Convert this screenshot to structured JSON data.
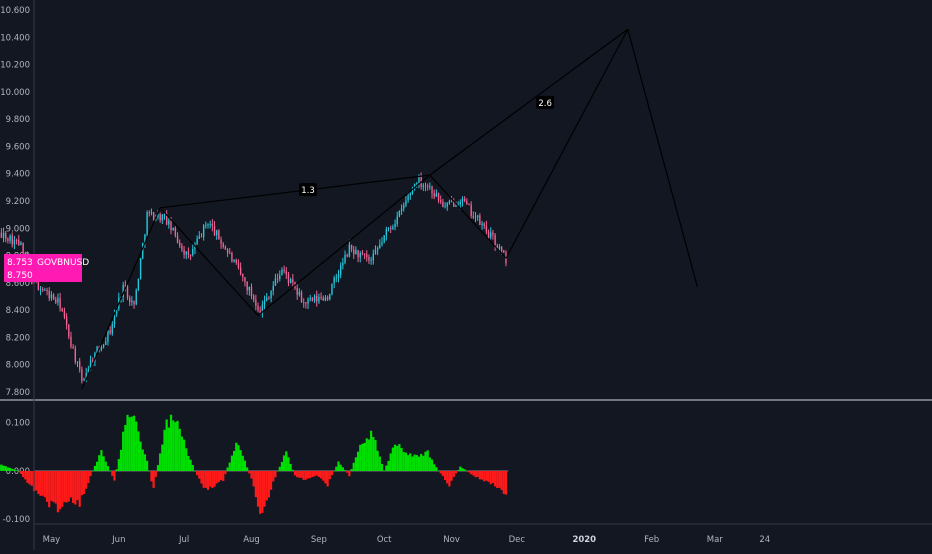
{
  "colors": {
    "background": "#131722",
    "axis_text": "#b2b5be",
    "candle_up": "#26c6da",
    "candle_down": "#f06292",
    "pattern_line": "#000000",
    "osc_positive": "#00e000",
    "osc_negative": "#ff1a1a",
    "badge": "#ff1ab3",
    "separator": "#d1d4dc"
  },
  "symbol": {
    "name": "GOVBNUSD",
    "price_top": "8.753",
    "price_bottom": "8.750"
  },
  "chart_data": [
    {
      "type": "candlestick",
      "title": "",
      "ylim": [
        7.74,
        10.66
      ],
      "y_ticks": [
        "7.800",
        "8.000",
        "8.200",
        "8.400",
        "8.600",
        "8.800",
        "9.000",
        "9.200",
        "9.400",
        "9.600",
        "9.800",
        "10.000",
        "10.200",
        "10.400",
        "10.600"
      ],
      "x_ticks": [
        "May",
        "Jun",
        "Jul",
        "Aug",
        "Sep",
        "Oct",
        "Nov",
        "Dec",
        "2020",
        "Feb",
        "Mar",
        "24"
      ],
      "price_path": [
        [
          "2019-04-01",
          8.93
        ],
        [
          "2019-04-10",
          8.95
        ],
        [
          "2019-04-17",
          8.87
        ],
        [
          "2019-04-22",
          8.62
        ],
        [
          "2019-05-05",
          8.44
        ],
        [
          "2019-05-15",
          7.88
        ],
        [
          "2019-05-20",
          8.05
        ],
        [
          "2019-05-28",
          8.25
        ],
        [
          "2019-06-03",
          8.58
        ],
        [
          "2019-06-08",
          8.43
        ],
        [
          "2019-06-14",
          9.1
        ],
        [
          "2019-06-22",
          9.08
        ],
        [
          "2019-07-03",
          8.78
        ],
        [
          "2019-07-12",
          9.05
        ],
        [
          "2019-07-22",
          8.8
        ],
        [
          "2019-08-05",
          8.4
        ],
        [
          "2019-08-15",
          8.7
        ],
        [
          "2019-08-25",
          8.45
        ],
        [
          "2019-09-05",
          8.5
        ],
        [
          "2019-09-15",
          8.85
        ],
        [
          "2019-09-25",
          8.75
        ],
        [
          "2019-10-02",
          8.97
        ],
        [
          "2019-10-08",
          9.1
        ],
        [
          "2019-10-16",
          9.36
        ],
        [
          "2019-10-22",
          9.3
        ],
        [
          "2019-10-29",
          9.15
        ],
        [
          "2019-11-05",
          9.22
        ],
        [
          "2019-11-12",
          9.08
        ],
        [
          "2019-11-20",
          8.92
        ],
        [
          "2019-11-26",
          8.77
        ]
      ],
      "pattern": {
        "points": [
          [
            "2019-05-15",
            7.82
          ],
          [
            "2019-06-20",
            9.15
          ],
          [
            "2019-08-04",
            8.36
          ],
          [
            "2019-10-22",
            9.39
          ],
          [
            "2019-11-26",
            8.78
          ],
          [
            "2020-01-21",
            10.46
          ],
          [
            "2020-02-22",
            8.57
          ]
        ],
        "ratio_lines": [
          {
            "from": 1,
            "to": 3,
            "label": "1.3",
            "label_at": [
              "2019-08-27",
              9.28
            ]
          },
          {
            "from": 3,
            "to": 5,
            "label": "2.6",
            "label_at": [
              "2019-12-14",
              9.92
            ]
          }
        ]
      }
    },
    {
      "type": "histogram",
      "title": "",
      "ylim": [
        -0.11,
        0.145
      ],
      "y_ticks": [
        "-0.100",
        "0.000",
        "0.100"
      ],
      "envelope": [
        [
          "2019-04-01",
          -0.01
        ],
        [
          "2019-04-04",
          0.02
        ],
        [
          "2019-04-10",
          0.01
        ],
        [
          "2019-04-16",
          0.0
        ],
        [
          "2019-04-21",
          -0.03
        ],
        [
          "2019-04-27",
          -0.06
        ],
        [
          "2019-05-04",
          -0.08
        ],
        [
          "2019-05-09",
          -0.06
        ],
        [
          "2019-05-14",
          -0.07
        ],
        [
          "2019-05-20",
          0.0
        ],
        [
          "2019-05-24",
          0.04
        ],
        [
          "2019-05-27",
          0.01
        ],
        [
          "2019-05-30",
          -0.02
        ],
        [
          "2019-06-02",
          0.05
        ],
        [
          "2019-06-05",
          0.13
        ],
        [
          "2019-06-09",
          0.1
        ],
        [
          "2019-06-14",
          0.02
        ],
        [
          "2019-06-17",
          -0.04
        ],
        [
          "2019-06-22",
          0.09
        ],
        [
          "2019-06-26",
          0.12
        ],
        [
          "2019-07-01",
          0.06
        ],
        [
          "2019-07-06",
          0.0
        ],
        [
          "2019-07-11",
          -0.04
        ],
        [
          "2019-07-15",
          -0.03
        ],
        [
          "2019-07-19",
          -0.02
        ],
        [
          "2019-07-25",
          0.06
        ],
        [
          "2019-07-29",
          0.02
        ],
        [
          "2019-08-02",
          -0.03
        ],
        [
          "2019-08-05",
          -0.09
        ],
        [
          "2019-08-09",
          -0.05
        ],
        [
          "2019-08-13",
          0.0
        ],
        [
          "2019-08-17",
          0.04
        ],
        [
          "2019-08-21",
          -0.01
        ],
        [
          "2019-08-26",
          -0.02
        ],
        [
          "2019-08-31",
          -0.01
        ],
        [
          "2019-09-05",
          -0.03
        ],
        [
          "2019-09-10",
          0.02
        ],
        [
          "2019-09-15",
          -0.01
        ],
        [
          "2019-09-20",
          0.06
        ],
        [
          "2019-09-26",
          0.08
        ],
        [
          "2019-10-01",
          0.0
        ],
        [
          "2019-10-06",
          0.06
        ],
        [
          "2019-10-11",
          0.04
        ],
        [
          "2019-10-16",
          0.03
        ],
        [
          "2019-10-21",
          0.04
        ],
        [
          "2019-10-26",
          0.0
        ],
        [
          "2019-10-31",
          -0.03
        ],
        [
          "2019-11-05",
          0.01
        ],
        [
          "2019-11-11",
          -0.01
        ],
        [
          "2019-11-16",
          -0.02
        ],
        [
          "2019-11-21",
          -0.03
        ],
        [
          "2019-11-26",
          -0.05
        ]
      ]
    }
  ]
}
